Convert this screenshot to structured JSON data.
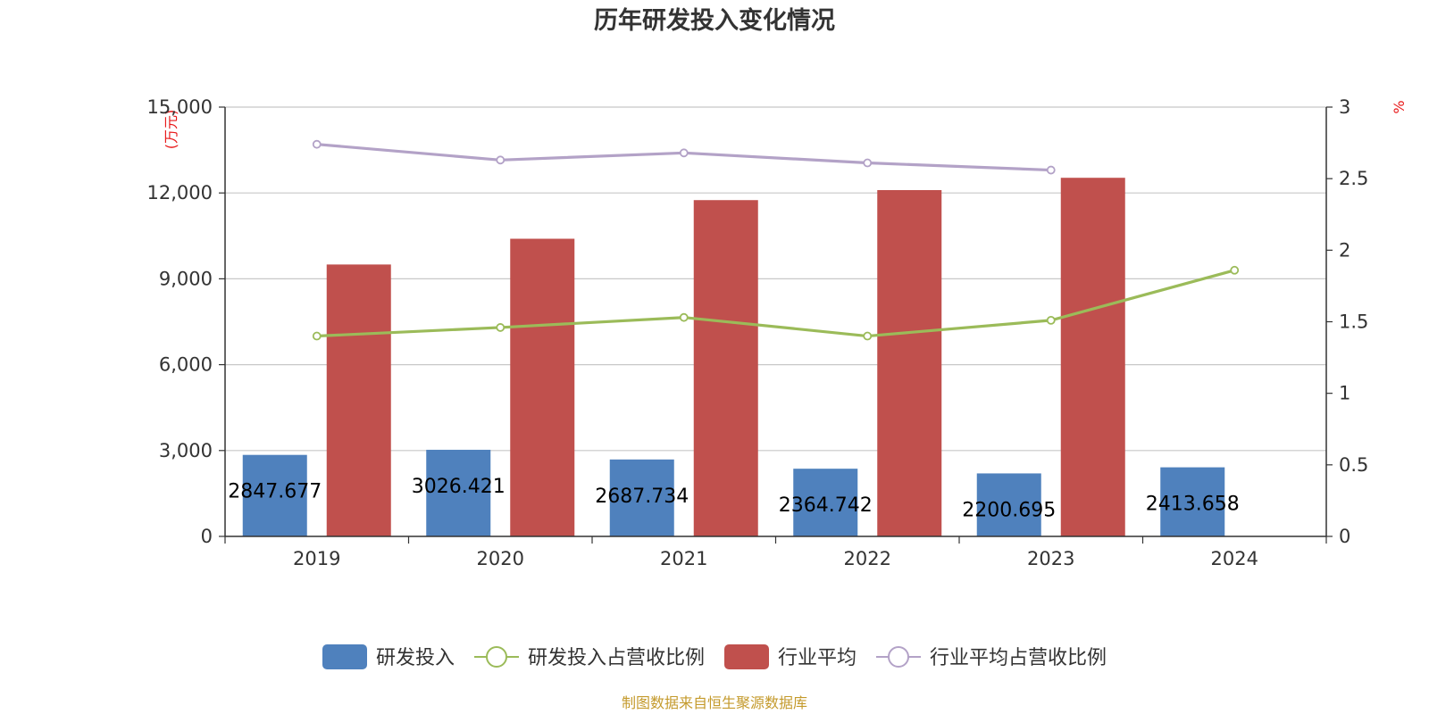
{
  "chart_data": {
    "type": "bar",
    "title": "历年研发投入变化情况",
    "categories": [
      "2019",
      "2020",
      "2021",
      "2022",
      "2023",
      "2024"
    ],
    "y_left": {
      "unit_label": "(万元)",
      "range": [
        0,
        15000
      ],
      "ticks": [
        0,
        3000,
        6000,
        9000,
        12000,
        15000
      ],
      "tick_labels": [
        "0",
        "3,000",
        "6,000",
        "9,000",
        "12,000",
        "15,000"
      ]
    },
    "y_right": {
      "unit_label": "%",
      "range": [
        0,
        3
      ],
      "ticks": [
        0,
        0.5,
        1,
        1.5,
        2,
        2.5,
        3
      ],
      "tick_labels": [
        "0",
        "0.5",
        "1",
        "1.5",
        "2",
        "2.5",
        "3"
      ]
    },
    "grid": true,
    "legend_position": "bottom",
    "series": [
      {
        "name": "研发投入",
        "kind": "bar",
        "axis": "left",
        "color": "#4f81bd",
        "values": [
          2847.677,
          3026.421,
          2687.734,
          2364.742,
          2200.695,
          2413.658
        ],
        "labels": [
          "2847.677",
          "3026.421",
          "2687.734",
          "2364.742",
          "2200.695",
          "2413.658"
        ]
      },
      {
        "name": "研发投入占营收比例",
        "kind": "line",
        "axis": "right",
        "color": "#9bbb59",
        "values": [
          1.4,
          1.46,
          1.53,
          1.4,
          1.51,
          1.86
        ]
      },
      {
        "name": "行业平均",
        "kind": "bar",
        "axis": "left",
        "color": "#c0504d",
        "values": [
          9500,
          10400,
          11750,
          12100,
          12530,
          null
        ]
      },
      {
        "name": "行业平均占营收比例",
        "kind": "line",
        "axis": "right",
        "color": "#b3a2c7",
        "values": [
          2.74,
          2.63,
          2.68,
          2.61,
          2.56,
          null
        ]
      }
    ],
    "source": "制图数据来自恒生聚源数据库"
  }
}
